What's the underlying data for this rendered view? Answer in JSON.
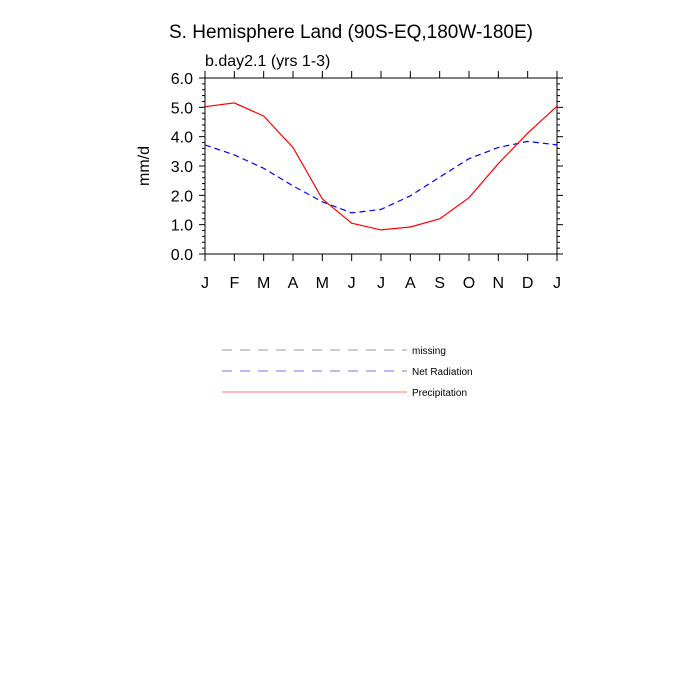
{
  "chart_data": {
    "type": "line",
    "title": "S. Hemisphere Land (90S-EQ,180W-180E)",
    "subtitle": "b.day2.1 (yrs 1-3)",
    "xlabel": "",
    "ylabel": "mm/d",
    "categories": [
      "J",
      "F",
      "M",
      "A",
      "M",
      "J",
      "J",
      "A",
      "S",
      "O",
      "N",
      "D",
      "J"
    ],
    "ylim": [
      0.0,
      6.0
    ],
    "yticks": [
      "0.0",
      "1.0",
      "2.0",
      "3.0",
      "4.0",
      "5.0",
      "6.0"
    ],
    "grid": false,
    "legend_position": "below",
    "legend": [
      {
        "name": "missing",
        "color": "#9a9a9a",
        "dash": "dashed"
      },
      {
        "name": "Net Radiation",
        "color": "#0000ff",
        "dash": "dashed"
      },
      {
        "name": "Precipitation",
        "color": "#ff0000",
        "dash": "solid"
      }
    ],
    "series": [
      {
        "name": "Net Radiation",
        "color": "#0000ff",
        "dash": "dashed",
        "values": [
          3.72,
          3.38,
          2.92,
          2.32,
          1.78,
          1.4,
          1.52,
          1.98,
          2.62,
          3.25,
          3.63,
          3.84,
          3.72
        ]
      },
      {
        "name": "Precipitation",
        "color": "#ff0000",
        "dash": "solid",
        "values": [
          5.02,
          5.15,
          4.7,
          3.63,
          1.88,
          1.05,
          0.82,
          0.92,
          1.2,
          1.92,
          3.08,
          4.12,
          5.04
        ]
      }
    ]
  }
}
